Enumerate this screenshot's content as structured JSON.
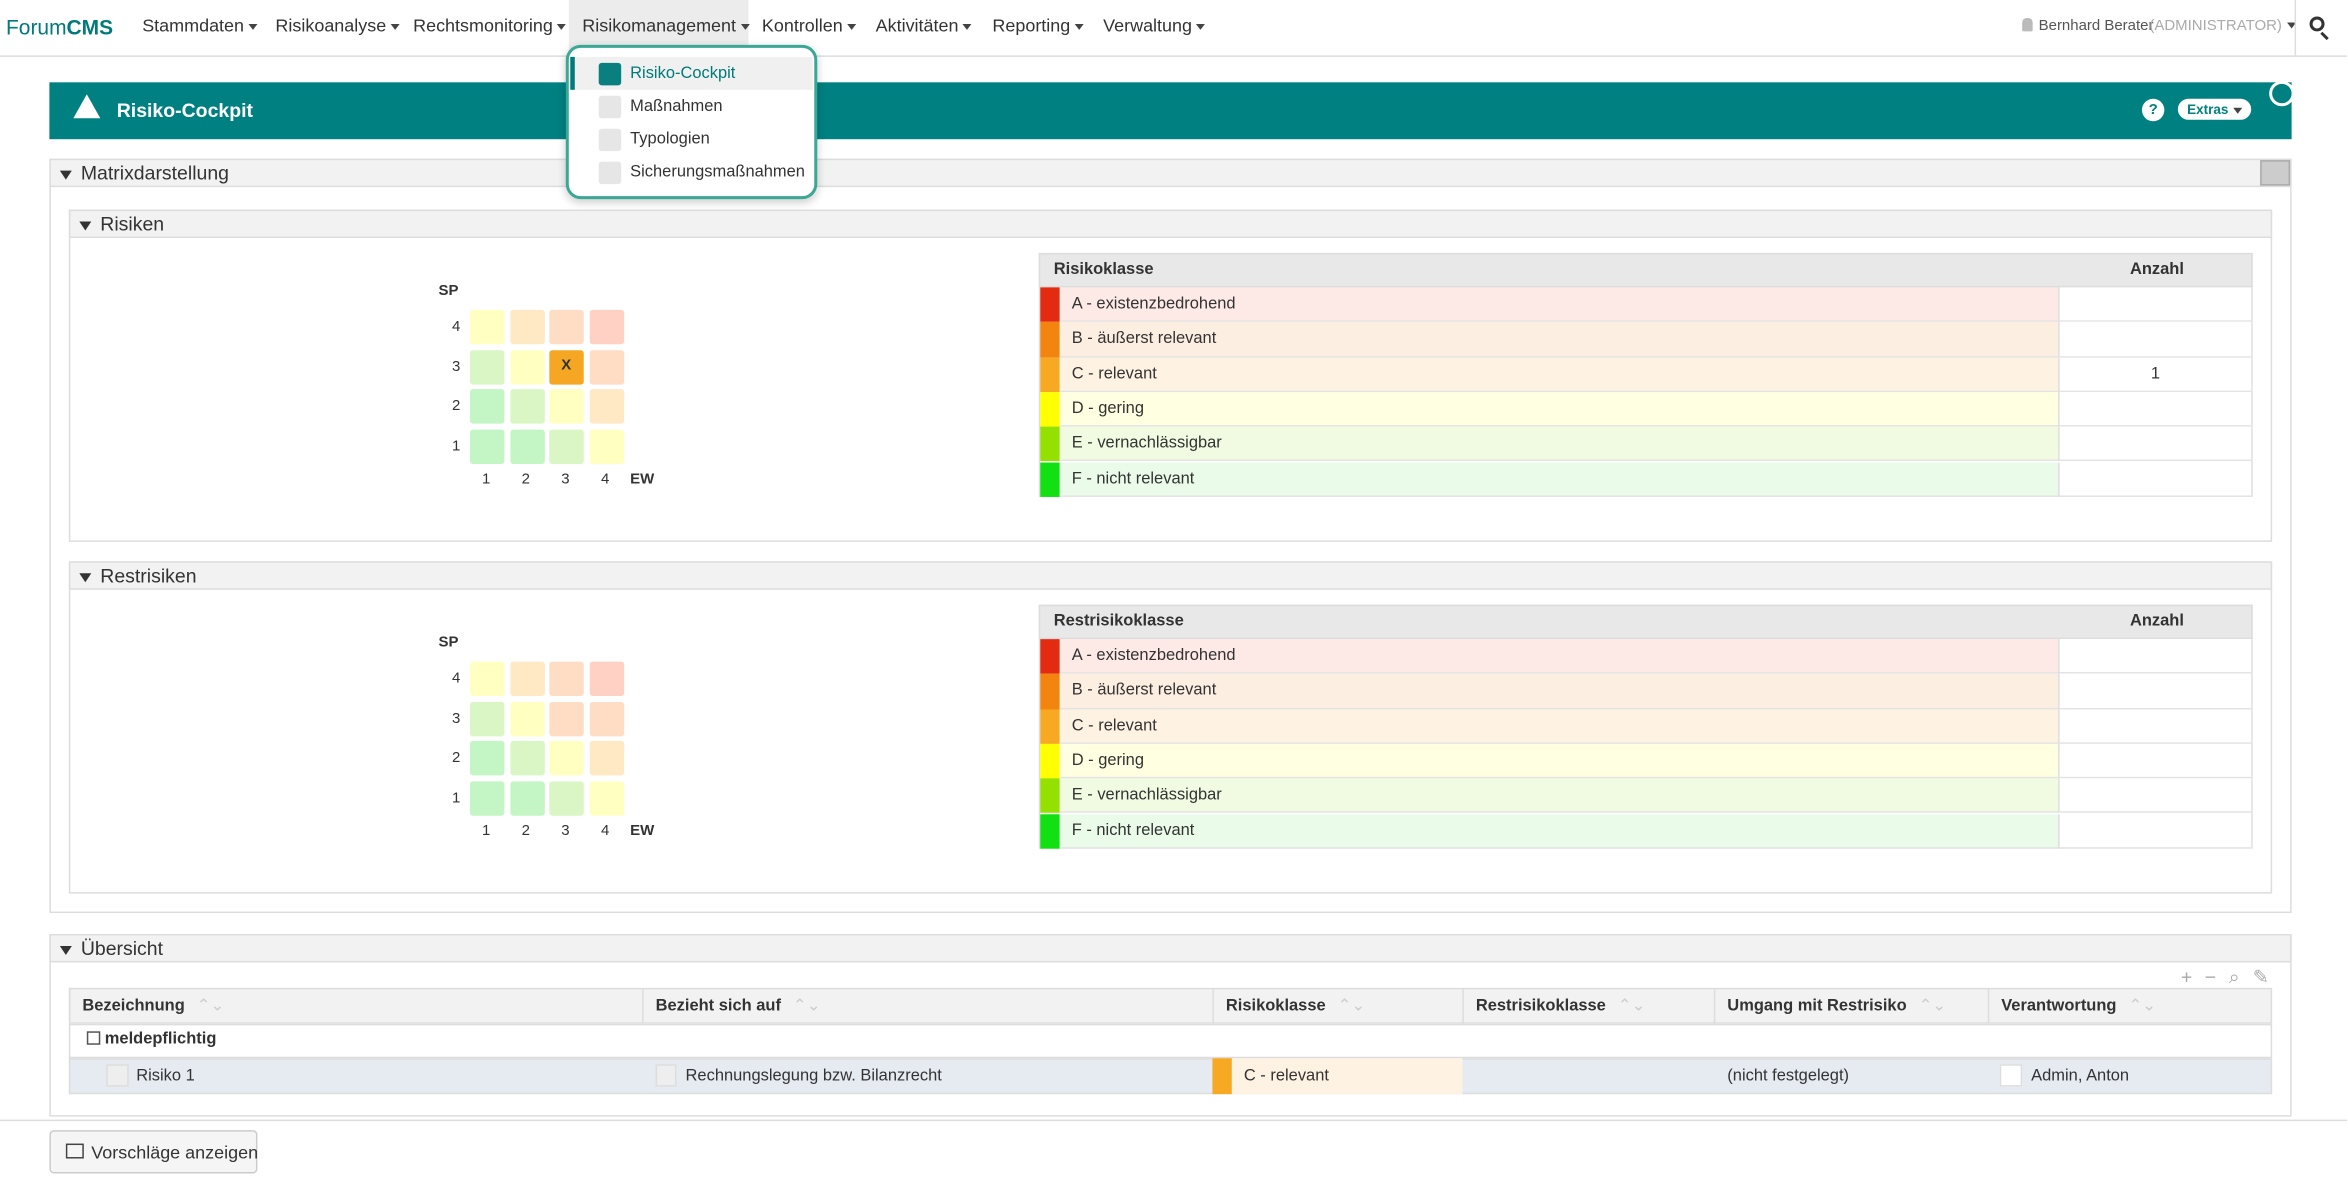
{
  "app": {
    "brand_prefix": "Forum",
    "brand_suffix": "CMS"
  },
  "nav": {
    "items": [
      "Stammdaten",
      "Risikoanalyse",
      "Rechtsmonitoring",
      "Risikomanagement",
      "Kontrollen",
      "Aktivitäten",
      "Reporting",
      "Verwaltung"
    ],
    "user": "Bernhard Berater",
    "role": "(ADMINISTRATOR)"
  },
  "dropdown": {
    "items": [
      "Risiko-Cockpit",
      "Maßnahmen",
      "Typologien",
      "Sicherungsmaßnahmen"
    ]
  },
  "panel": {
    "title": "Risiko-Cockpit",
    "help": "?",
    "extras": "Extras"
  },
  "matrix_section": {
    "title": "Matrixdarstellung"
  },
  "risks": {
    "title": "Risiken",
    "y_axis": "SP",
    "x_axis": "EW",
    "y_labels": [
      "4",
      "3",
      "2",
      "1"
    ],
    "x_labels": [
      "1",
      "2",
      "3",
      "4"
    ],
    "marker": "X",
    "class_header": "Risikoklasse",
    "count_header": "Anzahl",
    "classes": [
      {
        "name": "A - existenzbedrohend",
        "count": null
      },
      {
        "name": "B - äußerst relevant",
        "count": null
      },
      {
        "name": "C - relevant",
        "count": 1
      },
      {
        "name": "D - gering",
        "count": null
      },
      {
        "name": "E - vernachlässigbar",
        "count": null
      },
      {
        "name": "F - nicht relevant",
        "count": null
      }
    ]
  },
  "residual": {
    "title": "Restrisiken",
    "y_axis": "SP",
    "x_axis": "EW",
    "y_labels": [
      "4",
      "3",
      "2",
      "1"
    ],
    "x_labels": [
      "1",
      "2",
      "3",
      "4"
    ],
    "class_header": "Restrisikoklasse",
    "count_header": "Anzahl",
    "classes": [
      {
        "name": "A - existenzbedrohend",
        "count": null
      },
      {
        "name": "B - äußerst relevant",
        "count": null
      },
      {
        "name": "C - relevant",
        "count": null
      },
      {
        "name": "D - gering",
        "count": null
      },
      {
        "name": "E - vernachlässigbar",
        "count": null
      },
      {
        "name": "F - nicht relevant",
        "count": null
      }
    ]
  },
  "overview": {
    "title": "Übersicht",
    "columns": [
      "Bezeichnung",
      "Bezieht sich auf",
      "Risikoklasse",
      "Restrisikoklasse",
      "Umgang mit Restrisiko",
      "Verantwortung"
    ],
    "group": "meldepflichtig",
    "rows": [
      [
        "Risiko 1",
        "Rechnungslegung bzw. Bilanzrecht",
        "C - relevant",
        null,
        "(nicht festgelegt)",
        "Admin, Anton"
      ]
    ]
  },
  "footer": {
    "button": "Vorschläge anzeigen"
  }
}
